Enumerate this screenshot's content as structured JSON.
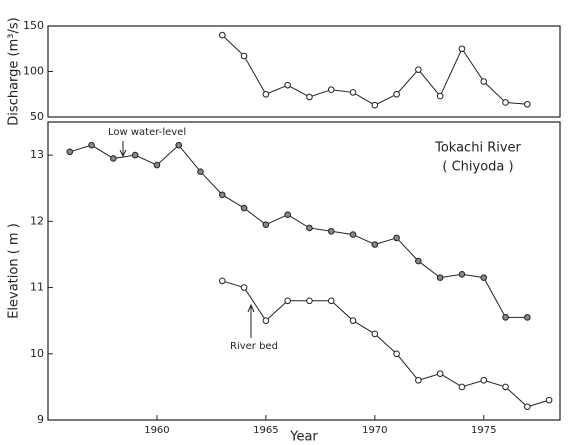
{
  "chart_data": [
    {
      "type": "line",
      "ylabel": "Discharge (m³/s)",
      "x": [
        1963,
        1964,
        1965,
        1966,
        1967,
        1968,
        1969,
        1970,
        1971,
        1972,
        1973,
        1974,
        1975,
        1976,
        1977
      ],
      "series": [
        {
          "name": "Discharge",
          "color": "#222",
          "marker": "open",
          "values": [
            140,
            117,
            75,
            85,
            72,
            80,
            77,
            63,
            75,
            102,
            73,
            125,
            89,
            66,
            64
          ]
        }
      ],
      "xlim": [
        1955,
        1978.5
      ],
      "ylim": [
        50,
        150
      ],
      "yticks": [
        50,
        100,
        150
      ]
    },
    {
      "type": "line",
      "xlabel": "Year",
      "ylabel": "Elevation ( m )",
      "x": [
        1956,
        1957,
        1958,
        1959,
        1960,
        1961,
        1962,
        1963,
        1964,
        1965,
        1966,
        1967,
        1968,
        1969,
        1970,
        1971,
        1972,
        1973,
        1974,
        1975,
        1976,
        1977,
        1978
      ],
      "series": [
        {
          "name": "Low water-level",
          "color": "#222",
          "marker": "filled",
          "values": [
            13.05,
            13.15,
            12.95,
            13.0,
            12.85,
            13.15,
            12.75,
            12.4,
            12.2,
            11.95,
            12.1,
            11.9,
            11.85,
            11.8,
            11.65,
            11.75,
            11.4,
            11.15,
            11.2,
            11.15,
            10.55,
            10.55,
            null
          ]
        },
        {
          "name": "River bed",
          "color": "#222",
          "marker": "open",
          "values": [
            null,
            null,
            null,
            null,
            null,
            null,
            null,
            11.1,
            11.0,
            10.5,
            10.8,
            10.8,
            10.8,
            10.5,
            10.3,
            10.0,
            9.6,
            9.7,
            9.5,
            9.6,
            9.5,
            9.2,
            9.3
          ]
        }
      ],
      "annotations": [
        "Tokachi River",
        "( Chiyoda )"
      ],
      "xlim": [
        1955,
        1978.5
      ],
      "xticks": [
        1960,
        1965,
        1970,
        1975
      ],
      "ylim": [
        9,
        13.5
      ],
      "yticks": [
        9,
        10,
        11,
        12,
        13
      ]
    }
  ]
}
